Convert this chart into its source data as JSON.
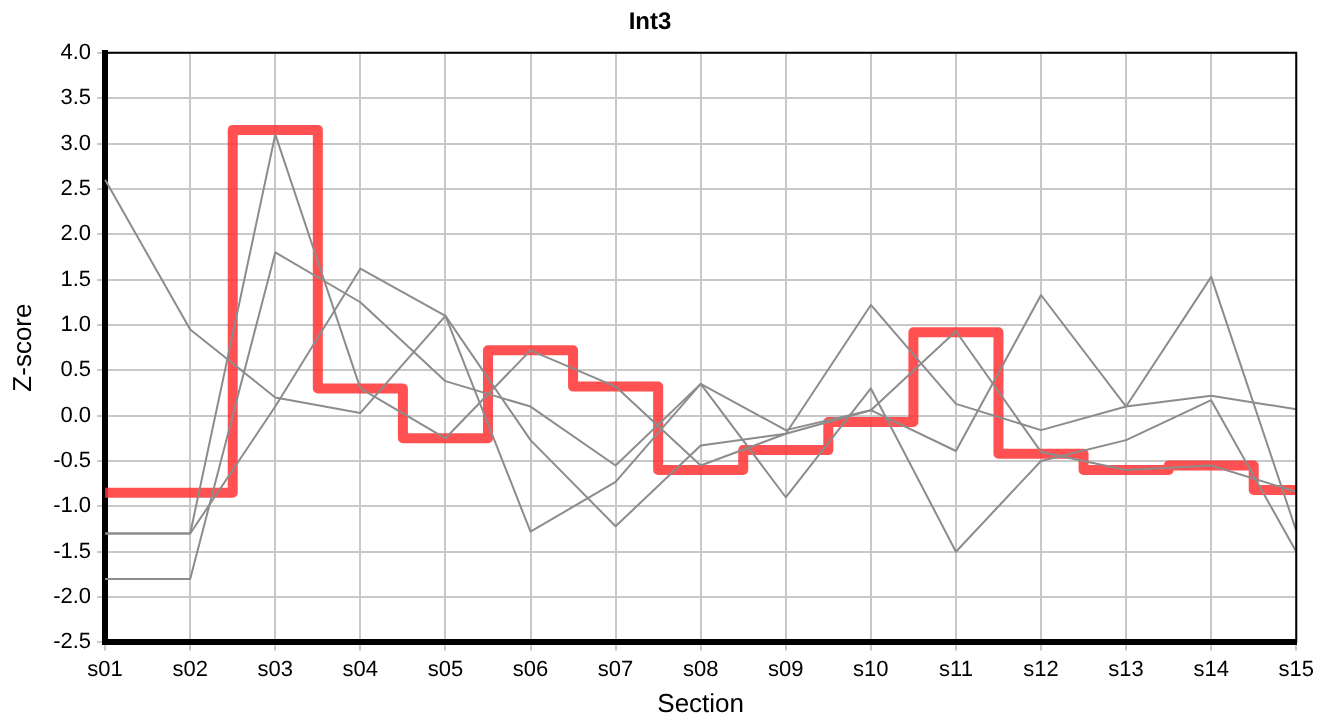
{
  "chart_data": {
    "type": "line",
    "title": "Int3",
    "xlabel": "Section",
    "ylabel": "Z-score",
    "categories": [
      "s01",
      "s02",
      "s03",
      "s04",
      "s05",
      "s06",
      "s07",
      "s08",
      "s09",
      "s10",
      "s11",
      "s12",
      "s13",
      "s14",
      "s15"
    ],
    "series": [
      {
        "color": "#8c8c8c",
        "values": [
          2.6,
          0.95,
          0.2,
          0.03,
          1.1,
          -1.28,
          -0.73,
          0.35,
          -0.9,
          0.3,
          -1.5,
          -0.5,
          -0.27,
          0.17,
          -1.5
        ]
      },
      {
        "color": "#8c8c8c",
        "values": [
          -1.3,
          -1.3,
          3.1,
          0.3,
          -0.25,
          0.72,
          0.32,
          -0.55,
          -0.2,
          1.22,
          0.13,
          -0.16,
          0.1,
          0.22,
          0.07
        ]
      },
      {
        "color": "#8c8c8c",
        "values": [
          -1.8,
          -1.8,
          1.8,
          1.25,
          0.38,
          0.1,
          -0.55,
          0.35,
          -0.16,
          0.06,
          0.93,
          -0.4,
          -0.6,
          -0.55,
          -0.84
        ]
      },
      {
        "color": "#8c8c8c",
        "values": [
          -1.3,
          -1.3,
          0.1,
          1.62,
          1.1,
          -0.27,
          -1.22,
          -0.33,
          -0.2,
          0.06,
          -0.39,
          1.33,
          0.1,
          1.53,
          -1.27
        ]
      },
      {
        "type": "step",
        "color": "#ff3333",
        "values": [
          -0.85,
          -0.85,
          3.15,
          0.3,
          -0.25,
          0.72,
          0.32,
          -0.6,
          -0.38,
          -0.07,
          0.92,
          -0.42,
          -0.6,
          -0.55,
          -0.82
        ]
      }
    ],
    "ylim": [
      -2.5,
      4
    ],
    "yticks": [
      {
        "value": -2.5,
        "label": "-2.5"
      },
      {
        "value": -2,
        "label": "-2.0"
      },
      {
        "value": -1.5,
        "label": "-1.5"
      },
      {
        "value": -1,
        "label": "-1.0"
      },
      {
        "value": -0.5,
        "label": "-0.5"
      },
      {
        "value": 0,
        "label": "0.0"
      },
      {
        "value": 0.5,
        "label": "0.5"
      },
      {
        "value": 1,
        "label": "1.0"
      },
      {
        "value": 1.5,
        "label": "1.5"
      },
      {
        "value": 2,
        "label": "2.0"
      },
      {
        "value": 2.5,
        "label": "2.5"
      },
      {
        "value": 3,
        "label": "3.0"
      },
      {
        "value": 3.5,
        "label": "3.5"
      },
      {
        "value": 4,
        "label": "4.0"
      }
    ],
    "grid": true,
    "legend": false
  }
}
